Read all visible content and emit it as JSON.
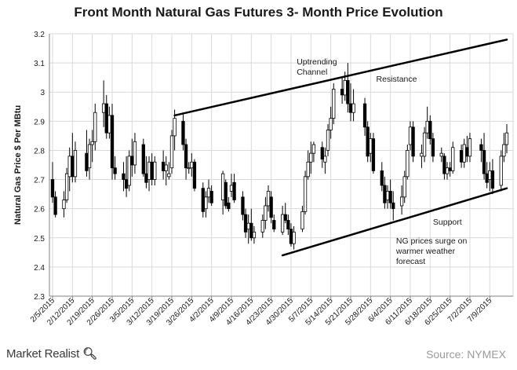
{
  "chart_data": {
    "type": "candlestick",
    "title": "Front Month Natural Gas Futures 3- Month Price Evolution",
    "ylabel": "Natural Gas Price $ Per MBtu",
    "xlabel": "",
    "ylim": [
      2.3,
      3.2
    ],
    "yticks": [
      2.3,
      2.4,
      2.5,
      2.6,
      2.7,
      2.8,
      2.9,
      3,
      3.1,
      3.2
    ],
    "ytick_labels": [
      "2.3",
      "2.4",
      "2.5",
      "2.6",
      "2.7",
      "2.8",
      "2.9",
      "3",
      "3.1",
      "3.2"
    ],
    "xlim": [
      "2015-02-05",
      "2015-07-15"
    ],
    "xticks": [
      "2015-02-05",
      "2015-02-12",
      "2015-02-19",
      "2015-02-26",
      "2015-03-05",
      "2015-03-12",
      "2015-03-19",
      "2015-03-26",
      "2015-04-02",
      "2015-04-09",
      "2015-04-16",
      "2015-04-23",
      "2015-04-30",
      "2015-05-07",
      "2015-05-14",
      "2015-05-21",
      "2015-05-28",
      "2015-06-04",
      "2015-06-11",
      "2015-06-18",
      "2015-06-25",
      "2015-07-02",
      "2015-07-09"
    ],
    "xtick_labels": [
      "2/5/2015",
      "2/12/2015",
      "2/19/2015",
      "2/26/2015",
      "3/5/2015",
      "3/12/2015",
      "3/19/2015",
      "3/26/2015",
      "4/2/2015",
      "4/9/2015",
      "4/16/2015",
      "4/23/2015",
      "4/30/2015",
      "5/7/2015",
      "5/14/2015",
      "5/21/2015",
      "5/28/2015",
      "6/4/2015",
      "6/11/2015",
      "6/18/2015",
      "6/25/2015",
      "7/2/2015",
      "7/9/2015"
    ],
    "grid": true,
    "candles": [
      {
        "date": "2015-02-05",
        "open": 2.7,
        "high": 2.76,
        "low": 2.62,
        "close": 2.64
      },
      {
        "date": "2015-02-06",
        "open": 2.64,
        "high": 2.66,
        "low": 2.57,
        "close": 2.58
      },
      {
        "date": "2015-02-09",
        "open": 2.6,
        "high": 2.66,
        "low": 2.57,
        "close": 2.63
      },
      {
        "date": "2015-02-10",
        "open": 2.63,
        "high": 2.74,
        "low": 2.62,
        "close": 2.72
      },
      {
        "date": "2015-02-11",
        "open": 2.71,
        "high": 2.81,
        "low": 2.66,
        "close": 2.78
      },
      {
        "date": "2015-02-12",
        "open": 2.78,
        "high": 2.86,
        "low": 2.69,
        "close": 2.71
      },
      {
        "date": "2015-02-13",
        "open": 2.71,
        "high": 2.83,
        "low": 2.69,
        "close": 2.8
      },
      {
        "date": "2015-02-17",
        "open": 2.79,
        "high": 2.87,
        "low": 2.71,
        "close": 2.73
      },
      {
        "date": "2015-02-18",
        "open": 2.74,
        "high": 2.84,
        "low": 2.7,
        "close": 2.82
      },
      {
        "date": "2015-02-19",
        "open": 2.82,
        "high": 2.87,
        "low": 2.76,
        "close": 2.83
      },
      {
        "date": "2015-02-20",
        "open": 2.83,
        "high": 2.96,
        "low": 2.8,
        "close": 2.93
      },
      {
        "date": "2015-02-23",
        "open": 2.93,
        "high": 3.04,
        "low": 2.88,
        "close": 2.96
      },
      {
        "date": "2015-02-24",
        "open": 2.96,
        "high": 2.99,
        "low": 2.84,
        "close": 2.86
      },
      {
        "date": "2015-02-25",
        "open": 2.86,
        "high": 2.95,
        "low": 2.84,
        "close": 2.92
      },
      {
        "date": "2015-02-26",
        "open": 2.92,
        "high": 2.96,
        "low": 2.7,
        "close": 2.74
      },
      {
        "date": "2015-02-27",
        "open": 2.74,
        "high": 2.78,
        "low": 2.7,
        "close": 2.72
      },
      {
        "date": "2015-03-02",
        "open": 2.72,
        "high": 2.76,
        "low": 2.66,
        "close": 2.7
      },
      {
        "date": "2015-03-03",
        "open": 2.7,
        "high": 2.78,
        "low": 2.64,
        "close": 2.67
      },
      {
        "date": "2015-03-04",
        "open": 2.68,
        "high": 2.8,
        "low": 2.66,
        "close": 2.78
      },
      {
        "date": "2015-03-05",
        "open": 2.78,
        "high": 2.84,
        "low": 2.71,
        "close": 2.75
      },
      {
        "date": "2015-03-06",
        "open": 2.75,
        "high": 2.86,
        "low": 2.72,
        "close": 2.83
      },
      {
        "date": "2015-03-09",
        "open": 2.82,
        "high": 2.84,
        "low": 2.71,
        "close": 2.72
      },
      {
        "date": "2015-03-10",
        "open": 2.72,
        "high": 2.78,
        "low": 2.67,
        "close": 2.69
      },
      {
        "date": "2015-03-11",
        "open": 2.7,
        "high": 2.78,
        "low": 2.66,
        "close": 2.76
      },
      {
        "date": "2015-03-12",
        "open": 2.76,
        "high": 2.79,
        "low": 2.68,
        "close": 2.7
      },
      {
        "date": "2015-03-13",
        "open": 2.7,
        "high": 2.78,
        "low": 2.68,
        "close": 2.76
      },
      {
        "date": "2015-03-16",
        "open": 2.76,
        "high": 2.8,
        "low": 2.7,
        "close": 2.73
      },
      {
        "date": "2015-03-17",
        "open": 2.73,
        "high": 2.78,
        "low": 2.68,
        "close": 2.75
      },
      {
        "date": "2015-03-18",
        "open": 2.71,
        "high": 2.76,
        "low": 2.7,
        "close": 2.72
      },
      {
        "date": "2015-03-19",
        "open": 2.74,
        "high": 2.87,
        "low": 2.72,
        "close": 2.85
      },
      {
        "date": "2015-03-20",
        "open": 2.85,
        "high": 2.94,
        "low": 2.8,
        "close": 2.91
      },
      {
        "date": "2015-03-23",
        "open": 2.9,
        "high": 2.93,
        "low": 2.8,
        "close": 2.82
      },
      {
        "date": "2015-03-24",
        "open": 2.82,
        "high": 2.84,
        "low": 2.7,
        "close": 2.74
      },
      {
        "date": "2015-03-25",
        "open": 2.74,
        "high": 2.76,
        "low": 2.72,
        "close": 2.74
      },
      {
        "date": "2015-03-26",
        "open": 2.74,
        "high": 2.79,
        "low": 2.71,
        "close": 2.76
      },
      {
        "date": "2015-03-27",
        "open": 2.76,
        "high": 2.77,
        "low": 2.66,
        "close": 2.67
      },
      {
        "date": "2015-03-30",
        "open": 2.67,
        "high": 2.69,
        "low": 2.57,
        "close": 2.59
      },
      {
        "date": "2015-03-31",
        "open": 2.6,
        "high": 2.66,
        "low": 2.57,
        "close": 2.64
      },
      {
        "date": "2015-04-01",
        "open": 2.64,
        "high": 2.7,
        "low": 2.62,
        "close": 2.67
      },
      {
        "date": "2015-04-02",
        "open": 2.66,
        "high": 2.68,
        "low": 2.61,
        "close": 2.62
      },
      {
        "date": "2015-04-06",
        "open": 2.63,
        "high": 2.73,
        "low": 2.58,
        "close": 2.72
      },
      {
        "date": "2015-04-07",
        "open": 2.69,
        "high": 2.7,
        "low": 2.6,
        "close": 2.61
      },
      {
        "date": "2015-04-08",
        "open": 2.62,
        "high": 2.64,
        "low": 2.59,
        "close": 2.6
      },
      {
        "date": "2015-04-09",
        "open": 2.66,
        "high": 2.72,
        "low": 2.64,
        "close": 2.68
      },
      {
        "date": "2015-04-10",
        "open": 2.69,
        "high": 2.72,
        "low": 2.62,
        "close": 2.63
      },
      {
        "date": "2015-04-13",
        "open": 2.64,
        "high": 2.66,
        "low": 2.56,
        "close": 2.58
      },
      {
        "date": "2015-04-14",
        "open": 2.58,
        "high": 2.6,
        "low": 2.5,
        "close": 2.52
      },
      {
        "date": "2015-04-15",
        "open": 2.53,
        "high": 2.58,
        "low": 2.48,
        "close": 2.55
      },
      {
        "date": "2015-04-16",
        "open": 2.55,
        "high": 2.6,
        "low": 2.49,
        "close": 2.5
      },
      {
        "date": "2015-04-17",
        "open": 2.5,
        "high": 2.54,
        "low": 2.48,
        "close": 2.52
      },
      {
        "date": "2015-04-20",
        "open": 2.52,
        "high": 2.58,
        "low": 2.5,
        "close": 2.56
      },
      {
        "date": "2015-04-21",
        "open": 2.56,
        "high": 2.64,
        "low": 2.53,
        "close": 2.61
      },
      {
        "date": "2015-04-22",
        "open": 2.61,
        "high": 2.68,
        "low": 2.59,
        "close": 2.66
      },
      {
        "date": "2015-04-23",
        "open": 2.64,
        "high": 2.66,
        "low": 2.55,
        "close": 2.57
      },
      {
        "date": "2015-04-24",
        "open": 2.56,
        "high": 2.58,
        "low": 2.52,
        "close": 2.53
      },
      {
        "date": "2015-04-27",
        "open": 2.52,
        "high": 2.61,
        "low": 2.51,
        "close": 2.58
      },
      {
        "date": "2015-04-28",
        "open": 2.58,
        "high": 2.62,
        "low": 2.55,
        "close": 2.56
      },
      {
        "date": "2015-04-29",
        "open": 2.56,
        "high": 2.58,
        "low": 2.51,
        "close": 2.53
      },
      {
        "date": "2015-04-30",
        "open": 2.53,
        "high": 2.55,
        "low": 2.47,
        "close": 2.48
      },
      {
        "date": "2015-05-01",
        "open": 2.48,
        "high": 2.54,
        "low": 2.46,
        "close": 2.52
      },
      {
        "date": "2015-05-04",
        "open": 2.53,
        "high": 2.61,
        "low": 2.52,
        "close": 2.59
      },
      {
        "date": "2015-05-05",
        "open": 2.59,
        "high": 2.73,
        "low": 2.58,
        "close": 2.71
      },
      {
        "date": "2015-05-06",
        "open": 2.71,
        "high": 2.8,
        "low": 2.7,
        "close": 2.76
      },
      {
        "date": "2015-05-07",
        "open": 2.76,
        "high": 2.83,
        "low": 2.72,
        "close": 2.79
      },
      {
        "date": "2015-05-08",
        "open": 2.79,
        "high": 2.83,
        "low": 2.76,
        "close": 2.82
      },
      {
        "date": "2015-05-11",
        "open": 2.81,
        "high": 2.83,
        "low": 2.74,
        "close": 2.77
      },
      {
        "date": "2015-05-12",
        "open": 2.76,
        "high": 2.81,
        "low": 2.72,
        "close": 2.78
      },
      {
        "date": "2015-05-13",
        "open": 2.8,
        "high": 2.89,
        "low": 2.78,
        "close": 2.87
      },
      {
        "date": "2015-05-14",
        "open": 2.87,
        "high": 2.95,
        "low": 2.84,
        "close": 2.91
      },
      {
        "date": "2015-05-15",
        "open": 2.91,
        "high": 3.03,
        "low": 2.89,
        "close": 3.01
      },
      {
        "date": "2015-05-18",
        "open": 3.01,
        "high": 3.05,
        "low": 2.96,
        "close": 2.99
      },
      {
        "date": "2015-05-19",
        "open": 2.99,
        "high": 3.07,
        "low": 2.97,
        "close": 3.04
      },
      {
        "date": "2015-05-20",
        "open": 3.04,
        "high": 3.1,
        "low": 2.93,
        "close": 2.96
      },
      {
        "date": "2015-05-21",
        "open": 2.96,
        "high": 3.03,
        "low": 2.9,
        "close": 2.93
      },
      {
        "date": "2015-05-22",
        "open": 2.93,
        "high": 3.01,
        "low": 2.9,
        "close": 2.96
      },
      {
        "date": "2015-05-26",
        "open": 2.96,
        "high": 2.98,
        "low": 2.85,
        "close": 2.88
      },
      {
        "date": "2015-05-27",
        "open": 2.88,
        "high": 2.9,
        "low": 2.76,
        "close": 2.78
      },
      {
        "date": "2015-05-28",
        "open": 2.79,
        "high": 2.86,
        "low": 2.76,
        "close": 2.84
      },
      {
        "date": "2015-05-29",
        "open": 2.84,
        "high": 2.86,
        "low": 2.72,
        "close": 2.73
      },
      {
        "date": "2015-06-01",
        "open": 2.73,
        "high": 2.76,
        "low": 2.66,
        "close": 2.68
      },
      {
        "date": "2015-06-02",
        "open": 2.68,
        "high": 2.71,
        "low": 2.6,
        "close": 2.62
      },
      {
        "date": "2015-06-03",
        "open": 2.63,
        "high": 2.68,
        "low": 2.6,
        "close": 2.66
      },
      {
        "date": "2015-06-04",
        "open": 2.66,
        "high": 2.7,
        "low": 2.6,
        "close": 2.62
      },
      {
        "date": "2015-06-05",
        "open": 2.62,
        "high": 2.66,
        "low": 2.56,
        "close": 2.6
      },
      {
        "date": "2015-06-08",
        "open": 2.61,
        "high": 2.68,
        "low": 2.58,
        "close": 2.64
      },
      {
        "date": "2015-06-09",
        "open": 2.64,
        "high": 2.73,
        "low": 2.62,
        "close": 2.71
      },
      {
        "date": "2015-06-10",
        "open": 2.71,
        "high": 2.82,
        "low": 2.7,
        "close": 2.8
      },
      {
        "date": "2015-06-11",
        "open": 2.82,
        "high": 2.9,
        "low": 2.8,
        "close": 2.88
      },
      {
        "date": "2015-06-12",
        "open": 2.88,
        "high": 2.9,
        "low": 2.76,
        "close": 2.78
      },
      {
        "date": "2015-06-15",
        "open": 2.78,
        "high": 2.82,
        "low": 2.74,
        "close": 2.79
      },
      {
        "date": "2015-06-16",
        "open": 2.78,
        "high": 2.88,
        "low": 2.76,
        "close": 2.86
      },
      {
        "date": "2015-06-17",
        "open": 2.86,
        "high": 2.95,
        "low": 2.84,
        "close": 2.9
      },
      {
        "date": "2015-06-18",
        "open": 2.9,
        "high": 2.92,
        "low": 2.82,
        "close": 2.84
      },
      {
        "date": "2015-06-19",
        "open": 2.84,
        "high": 2.86,
        "low": 2.76,
        "close": 2.78
      },
      {
        "date": "2015-06-22",
        "open": 2.78,
        "high": 2.81,
        "low": 2.76,
        "close": 2.79
      },
      {
        "date": "2015-06-23",
        "open": 2.78,
        "high": 2.79,
        "low": 2.7,
        "close": 2.72
      },
      {
        "date": "2015-06-24",
        "open": 2.72,
        "high": 2.76,
        "low": 2.7,
        "close": 2.74
      },
      {
        "date": "2015-06-25",
        "open": 2.74,
        "high": 2.76,
        "low": 2.71,
        "close": 2.73
      },
      {
        "date": "2015-06-26",
        "open": 2.73,
        "high": 2.83,
        "low": 2.72,
        "close": 2.81
      },
      {
        "date": "2015-06-29",
        "open": 2.8,
        "high": 2.82,
        "low": 2.74,
        "close": 2.76
      },
      {
        "date": "2015-06-30",
        "open": 2.76,
        "high": 2.84,
        "low": 2.74,
        "close": 2.82
      },
      {
        "date": "2015-07-01",
        "open": 2.81,
        "high": 2.85,
        "low": 2.76,
        "close": 2.78
      },
      {
        "date": "2015-07-02",
        "open": 2.78,
        "high": 2.86,
        "low": 2.76,
        "close": 2.84
      },
      {
        "date": "2015-07-06",
        "open": 2.82,
        "high": 2.84,
        "low": 2.76,
        "close": 2.8
      },
      {
        "date": "2015-07-07",
        "open": 2.8,
        "high": 2.86,
        "low": 2.7,
        "close": 2.72
      },
      {
        "date": "2015-07-08",
        "open": 2.72,
        "high": 2.76,
        "low": 2.67,
        "close": 2.69
      },
      {
        "date": "2015-07-09",
        "open": 2.7,
        "high": 2.76,
        "low": 2.66,
        "close": 2.73
      },
      {
        "date": "2015-07-10",
        "open": 2.73,
        "high": 2.77,
        "low": 2.65,
        "close": 2.67
      },
      {
        "date": "2015-07-13",
        "open": 2.68,
        "high": 2.8,
        "low": 2.66,
        "close": 2.78
      },
      {
        "date": "2015-07-14",
        "open": 2.78,
        "high": 2.86,
        "low": 2.76,
        "close": 2.82
      },
      {
        "date": "2015-07-15",
        "open": 2.82,
        "high": 2.89,
        "low": 2.79,
        "close": 2.86
      }
    ],
    "trendlines": [
      {
        "name": "resistance",
        "start": {
          "date": "2015-03-20",
          "value": 2.92
        },
        "end": {
          "date": "2015-07-15",
          "value": 3.18
        }
      },
      {
        "name": "support",
        "start": {
          "date": "2015-04-27",
          "value": 2.44
        },
        "end": {
          "date": "2015-07-15",
          "value": 2.67
        }
      }
    ],
    "annotations": [
      {
        "id": "uptrending-channel",
        "lines": [
          "Uptrending",
          "Channel"
        ],
        "date": "2015-05-02",
        "value": 3.095
      },
      {
        "id": "resistance",
        "lines": [
          "Resistance"
        ],
        "date": "2015-05-30",
        "value": 3.035
      },
      {
        "id": "support",
        "lines": [
          "Support"
        ],
        "date": "2015-06-19",
        "value": 2.545
      },
      {
        "id": "ng-surge",
        "lines": [
          "NG prices surge on",
          "warmer weather",
          "forecast"
        ],
        "date": "2015-06-06",
        "value": 2.48
      }
    ],
    "colors": {
      "candle": "#000000",
      "grid": "#d9d9d9",
      "trendline": "#000000",
      "axis": "#808080"
    }
  },
  "footer": {
    "brand": "Market Realist",
    "brand_icon": "magnifier-q-icon",
    "source": "Source: NYMEX"
  }
}
